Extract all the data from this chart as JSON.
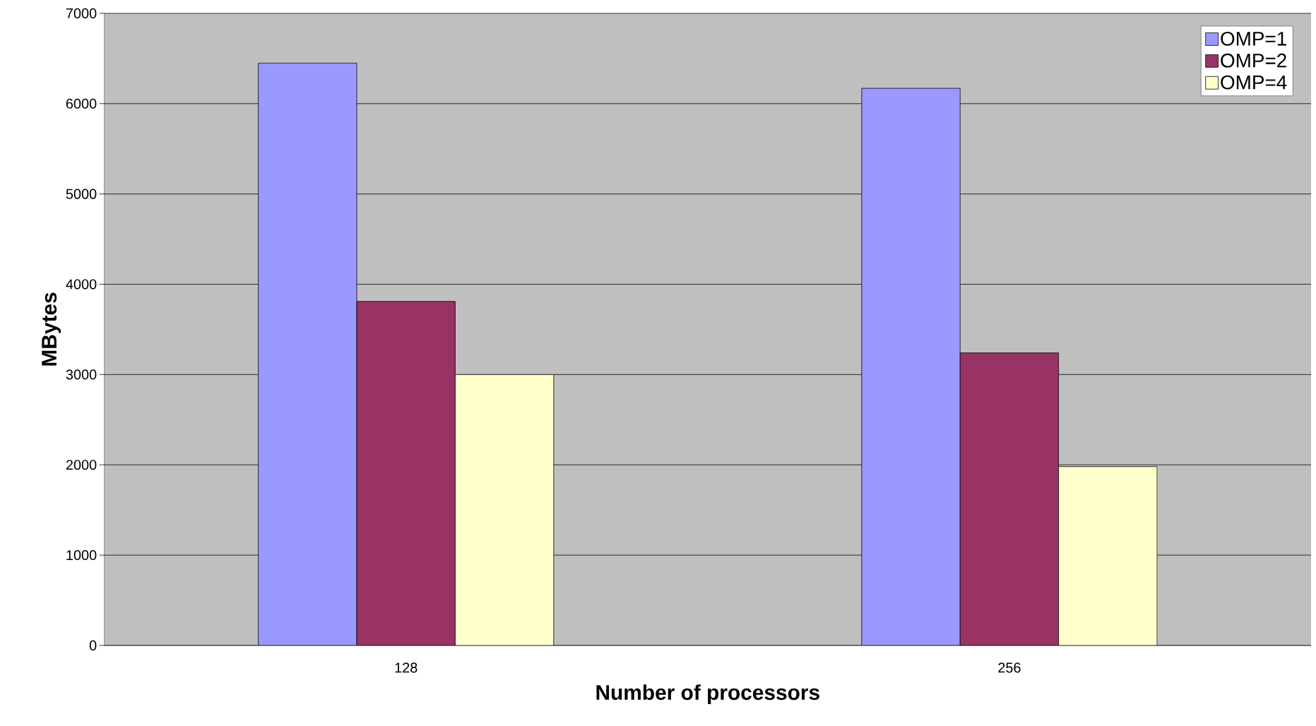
{
  "chart_data": {
    "type": "bar",
    "xlabel": "Number of processors",
    "ylabel": "MBytes",
    "categories": [
      "128",
      "256"
    ],
    "series": [
      {
        "name": "OMP=1",
        "color": "#9999ff",
        "values": [
          6450,
          6170
        ]
      },
      {
        "name": "OMP=2",
        "color": "#993366",
        "values": [
          3810,
          3240
        ]
      },
      {
        "name": "OMP=4",
        "color": "#ffffcc",
        "values": [
          3000,
          1980
        ]
      }
    ],
    "ylim": [
      0,
      7000
    ],
    "yticks": [
      0,
      1000,
      2000,
      3000,
      4000,
      5000,
      6000,
      7000
    ],
    "grid": "y",
    "legend": "top right"
  }
}
